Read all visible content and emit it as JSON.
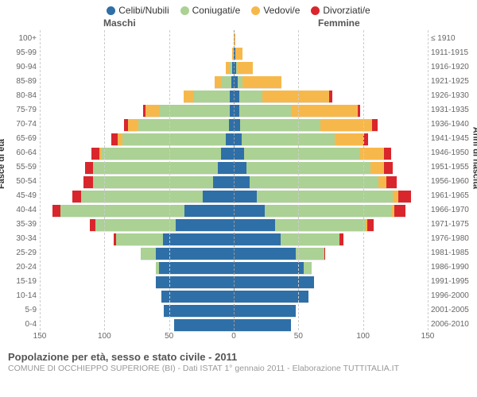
{
  "legend": [
    {
      "label": "Celibi/Nubili",
      "color": "#2f6fa7"
    },
    {
      "label": "Coniugati/e",
      "color": "#abd194"
    },
    {
      "label": "Vedovi/e",
      "color": "#f7b84b"
    },
    {
      "label": "Divorziati/e",
      "color": "#d9262c"
    }
  ],
  "headers": {
    "male": "Maschi",
    "female": "Femmine"
  },
  "y_left_title": "Fasce di età",
  "y_right_title": "Anni di nascita",
  "x_ticks": [
    150,
    100,
    50,
    0,
    50,
    100,
    150
  ],
  "x_max": 150,
  "colors": {
    "single": "#2f6fa7",
    "married": "#abd194",
    "widowed": "#f7b84b",
    "divorced": "#d9262c",
    "grid": "#cccccc",
    "center": "#999999",
    "bg": "#ffffff"
  },
  "rows": [
    {
      "age": "100+",
      "birth": "≤ 1910",
      "m": [
        0,
        0,
        0,
        0
      ],
      "f": [
        0,
        0,
        1,
        0
      ]
    },
    {
      "age": "95-99",
      "birth": "1911-1915",
      "m": [
        0,
        0,
        1,
        0
      ],
      "f": [
        1,
        0,
        6,
        0
      ]
    },
    {
      "age": "90-94",
      "birth": "1916-1920",
      "m": [
        1,
        2,
        3,
        0
      ],
      "f": [
        2,
        1,
        12,
        0
      ]
    },
    {
      "age": "85-89",
      "birth": "1921-1925",
      "m": [
        2,
        8,
        5,
        0
      ],
      "f": [
        3,
        4,
        30,
        0
      ]
    },
    {
      "age": "80-84",
      "birth": "1926-1930",
      "m": [
        3,
        28,
        8,
        0
      ],
      "f": [
        4,
        18,
        52,
        2
      ]
    },
    {
      "age": "75-79",
      "birth": "1931-1935",
      "m": [
        3,
        55,
        10,
        2
      ],
      "f": [
        4,
        40,
        52,
        2
      ]
    },
    {
      "age": "70-74",
      "birth": "1936-1940",
      "m": [
        4,
        70,
        8,
        3
      ],
      "f": [
        5,
        62,
        40,
        4
      ]
    },
    {
      "age": "65-69",
      "birth": "1941-1945",
      "m": [
        6,
        80,
        4,
        5
      ],
      "f": [
        6,
        72,
        22,
        4
      ]
    },
    {
      "age": "60-64",
      "birth": "1946-1950",
      "m": [
        10,
        92,
        2,
        6
      ],
      "f": [
        8,
        90,
        18,
        6
      ]
    },
    {
      "age": "55-59",
      "birth": "1951-1955",
      "m": [
        12,
        96,
        1,
        6
      ],
      "f": [
        10,
        96,
        10,
        7
      ]
    },
    {
      "age": "50-54",
      "birth": "1956-1960",
      "m": [
        16,
        92,
        1,
        7
      ],
      "f": [
        12,
        100,
        6,
        8
      ]
    },
    {
      "age": "45-49",
      "birth": "1961-1965",
      "m": [
        24,
        94,
        0,
        7
      ],
      "f": [
        18,
        105,
        4,
        10
      ]
    },
    {
      "age": "40-44",
      "birth": "1966-1970",
      "m": [
        38,
        96,
        0,
        6
      ],
      "f": [
        24,
        98,
        2,
        9
      ]
    },
    {
      "age": "35-39",
      "birth": "1971-1975",
      "m": [
        45,
        62,
        0,
        4
      ],
      "f": [
        32,
        70,
        1,
        5
      ]
    },
    {
      "age": "30-34",
      "birth": "1976-1980",
      "m": [
        55,
        36,
        0,
        2
      ],
      "f": [
        36,
        46,
        0,
        3
      ]
    },
    {
      "age": "25-29",
      "birth": "1981-1985",
      "m": [
        60,
        12,
        0,
        0
      ],
      "f": [
        48,
        22,
        0,
        1
      ]
    },
    {
      "age": "20-24",
      "birth": "1986-1990",
      "m": [
        58,
        2,
        0,
        0
      ],
      "f": [
        54,
        6,
        0,
        0
      ]
    },
    {
      "age": "15-19",
      "birth": "1991-1995",
      "m": [
        60,
        0,
        0,
        0
      ],
      "f": [
        62,
        0,
        0,
        0
      ]
    },
    {
      "age": "10-14",
      "birth": "1996-2000",
      "m": [
        56,
        0,
        0,
        0
      ],
      "f": [
        58,
        0,
        0,
        0
      ]
    },
    {
      "age": "5-9",
      "birth": "2001-2005",
      "m": [
        54,
        0,
        0,
        0
      ],
      "f": [
        48,
        0,
        0,
        0
      ]
    },
    {
      "age": "0-4",
      "birth": "2006-2010",
      "m": [
        46,
        0,
        0,
        0
      ],
      "f": [
        44,
        0,
        0,
        0
      ]
    }
  ],
  "title": "Popolazione per età, sesso e stato civile - 2011",
  "subtitle": "COMUNE DI OCCHIEPPO SUPERIORE (BI) - Dati ISTAT 1° gennaio 2011 - Elaborazione TUTTITALIA.IT",
  "fontsize": {
    "legend": 12,
    "header": 12,
    "tick": 10,
    "title": 13,
    "subtitle": 10.5,
    "axis_title": 11
  }
}
